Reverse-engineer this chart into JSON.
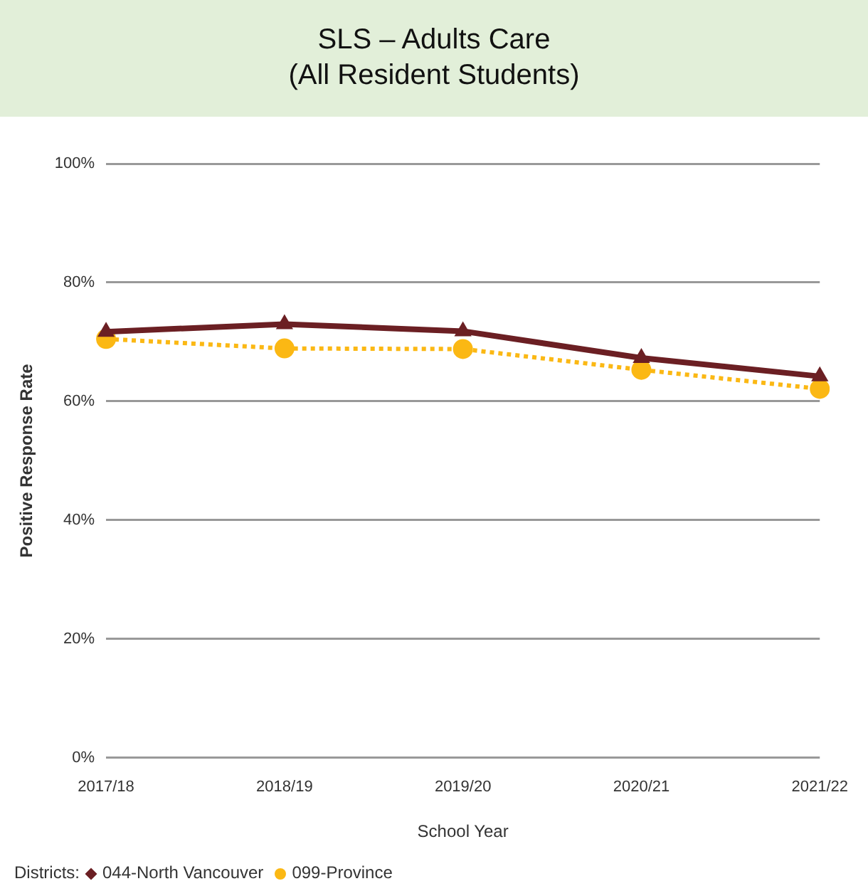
{
  "chart_data": {
    "type": "line",
    "title": "SLS – Adults Care",
    "subtitle": "(All Resident Students)",
    "xlabel": "School Year",
    "ylabel": "Positive Response Rate",
    "legend_title": "Districts:",
    "legend": "bottom left",
    "grid": "y",
    "categories": [
      "2017/18",
      "2018/19",
      "2019/20",
      "2020/21",
      "2021/22"
    ],
    "ylim": [
      0,
      100
    ],
    "yticks": [
      {
        "value": 0,
        "label": "0%"
      },
      {
        "value": 20,
        "label": "20%"
      },
      {
        "value": 40,
        "label": "40%"
      },
      {
        "value": 60,
        "label": "60%"
      },
      {
        "value": 80,
        "label": "80%"
      },
      {
        "value": 100,
        "label": "100%"
      }
    ],
    "series": [
      {
        "name": "044-North Vancouver",
        "color": "#6b1f23",
        "marker": "triangle",
        "line_style": "solid",
        "values": [
          71.7,
          73.0,
          71.8,
          67.3,
          64.2
        ]
      },
      {
        "name": "099-Province",
        "color": "#fbb814",
        "marker": "circle",
        "line_style": "dotted",
        "values": [
          70.5,
          68.9,
          68.8,
          65.3,
          62.1
        ]
      }
    ]
  }
}
